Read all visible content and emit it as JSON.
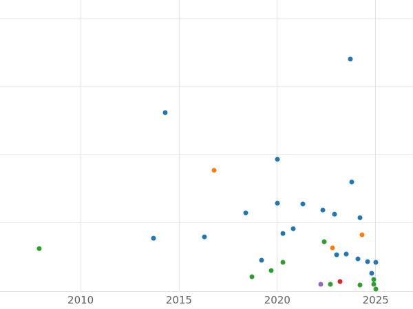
{
  "chart_data": {
    "type": "scatter",
    "title": "",
    "xlabel": "",
    "ylabel": "",
    "grid": true,
    "grid_color": "#e3e3e3",
    "tick_label_color": "#5f5f5f",
    "x_ticks": [
      "2010",
      "2015",
      "2020",
      "2025"
    ],
    "x_tick_values": [
      2010,
      2015,
      2020,
      2025
    ],
    "x_range": [
      2005.9,
      2026.9
    ],
    "y_range": [
      0,
      4.28
    ],
    "y_gridlines": [
      0,
      1,
      2,
      3,
      4
    ],
    "legend": "none",
    "series": [
      {
        "name": "series-blue",
        "color": "#1f77b4",
        "points": [
          [
            2023.7,
            3.41
          ],
          [
            2014.3,
            2.62
          ],
          [
            2020.0,
            1.94
          ],
          [
            2023.8,
            1.61
          ],
          [
            2020.0,
            1.29
          ],
          [
            2021.3,
            1.28
          ],
          [
            2018.4,
            1.15
          ],
          [
            2022.3,
            1.19
          ],
          [
            2022.9,
            1.13
          ],
          [
            2024.2,
            1.08
          ],
          [
            2020.8,
            0.92
          ],
          [
            2020.3,
            0.85
          ],
          [
            2013.7,
            0.78
          ],
          [
            2016.3,
            0.8
          ],
          [
            2019.2,
            0.45
          ],
          [
            2023.0,
            0.53
          ],
          [
            2023.5,
            0.55
          ],
          [
            2024.1,
            0.47
          ],
          [
            2024.6,
            0.43
          ],
          [
            2025.0,
            0.42
          ],
          [
            2024.8,
            0.26
          ]
        ]
      },
      {
        "name": "series-orange",
        "color": "#ff7f0e",
        "points": [
          [
            2016.8,
            1.78
          ],
          [
            2024.3,
            0.83
          ],
          [
            2022.8,
            0.64
          ]
        ]
      },
      {
        "name": "series-green",
        "color": "#2ca02c",
        "points": [
          [
            2007.9,
            0.63
          ],
          [
            2022.4,
            0.73
          ],
          [
            2020.3,
            0.42
          ],
          [
            2019.7,
            0.3
          ],
          [
            2018.7,
            0.21
          ],
          [
            2022.7,
            0.1
          ],
          [
            2024.2,
            0.09
          ],
          [
            2024.9,
            0.17
          ],
          [
            2024.9,
            0.1
          ],
          [
            2025.0,
            0.03
          ]
        ]
      },
      {
        "name": "series-red",
        "color": "#d62728",
        "points": [
          [
            2023.2,
            0.14
          ]
        ]
      },
      {
        "name": "series-purple",
        "color": "#9467bd",
        "points": [
          [
            2022.2,
            0.1
          ]
        ]
      }
    ]
  }
}
